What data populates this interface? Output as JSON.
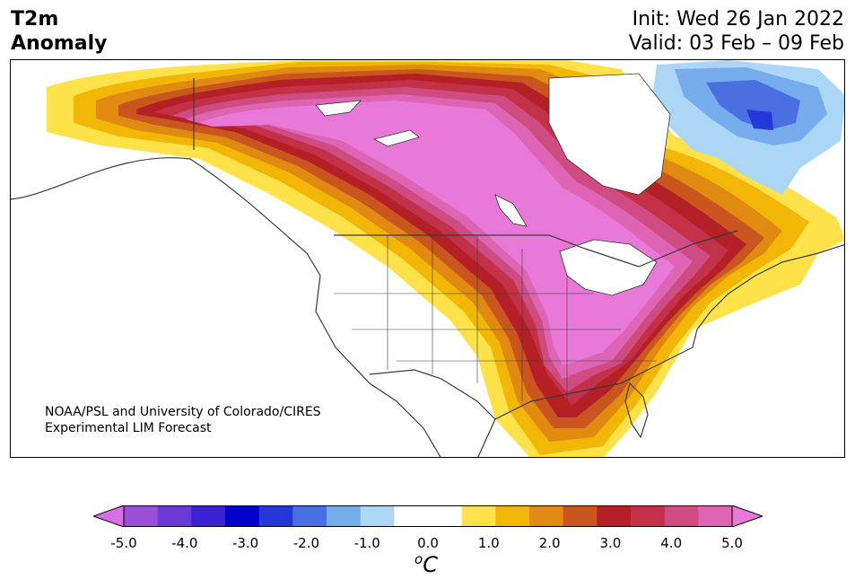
{
  "header": {
    "left_line1": "T2m",
    "left_line2": "Anomaly",
    "init_text": "Init: Wed 26 Jan 2022",
    "valid_text": "Valid: 03 Feb – 09 Feb"
  },
  "map": {
    "credit_line1": "NOAA/PSL and University of Colorado/CIRES",
    "credit_line2": "Experimental LIM Forecast"
  },
  "colorbar": {
    "colors": [
      "#d86ee6",
      "#9a4fd8",
      "#6a3ad6",
      "#3b22d2",
      "#0000cc",
      "#2437d8",
      "#4a6fe0",
      "#76acec",
      "#abd6f6",
      "#ffffff",
      "#ffffff",
      "#ffe24a",
      "#f2b706",
      "#e08a12",
      "#c8561e",
      "#b52026",
      "#c23148",
      "#ce4c82",
      "#de64b4",
      "#e879d8"
    ],
    "ticks": [
      "-5.0",
      "-4.0",
      "-3.0",
      "-2.0",
      "-1.0",
      "0.0",
      "1.0",
      "2.0",
      "3.0",
      "4.0",
      "5.0"
    ],
    "unit_base": "C",
    "unit_sup": "o"
  }
}
